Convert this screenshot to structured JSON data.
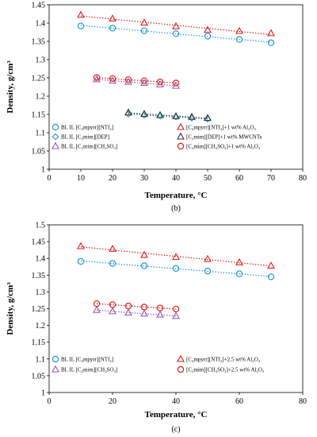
{
  "chart_data": [
    {
      "type": "scatter",
      "panel_label": "(b)",
      "xlabel": "Temperature, °C",
      "ylabel": "Density, g/cm³",
      "xlim": [
        0,
        80
      ],
      "ylim": [
        1,
        1.45
      ],
      "xticks": [
        0,
        10,
        20,
        30,
        40,
        50,
        60,
        70,
        80
      ],
      "yticks": [
        1,
        1.05,
        1.1,
        1.15,
        1.2,
        1.25,
        1.3,
        1.35,
        1.4,
        1.45
      ],
      "xtick_labels": [
        "0",
        "10",
        "20",
        "30",
        "40",
        "50",
        "60",
        "70",
        "80"
      ],
      "ytick_labels": [
        "1",
        "1.05",
        "1.1",
        "1.15",
        "1.2",
        "1.25",
        "1.3",
        "1.35",
        "1.4",
        "1.45"
      ],
      "grid": false,
      "legend_placement": "bottom-inside",
      "series": [
        {
          "name": "BL IL [C₄mpyrr][NTf₂]",
          "marker": "circle",
          "color": "#1f9bd7",
          "x": [
            10,
            20,
            30,
            40,
            50,
            60,
            70
          ],
          "y": [
            1.392,
            1.386,
            1.379,
            1.371,
            1.364,
            1.355,
            1.346
          ]
        },
        {
          "name": "[C₄mpyrr][NTf₂]+1 wt% Al₂O₃",
          "marker": "triangle",
          "color": "#e0201b",
          "x": [
            10,
            20,
            30,
            40,
            50,
            60,
            70
          ],
          "y": [
            1.422,
            1.412,
            1.401,
            1.391,
            1.381,
            1.378,
            1.372
          ]
        },
        {
          "name": "BL IL [C₂mim][DEP]",
          "marker": "diamond",
          "color": "#1f9bd7",
          "x": [
            25,
            30,
            35,
            40,
            45,
            50
          ],
          "y": [
            1.151,
            1.148,
            1.146,
            1.143,
            1.14,
            1.137
          ]
        },
        {
          "name": "[C₂mim][DEP]+1 wt% MWCNTs",
          "marker": "triangle",
          "color": "#333333",
          "x": [
            25,
            30,
            35,
            40,
            45,
            50
          ],
          "y": [
            1.155,
            1.151,
            1.148,
            1.145,
            1.143,
            1.14
          ]
        },
        {
          "name": "BL IL [C₂mim][CH₃SO₃]",
          "marker": "triangle",
          "color": "#9b59b6",
          "x": [
            15,
            20,
            25,
            30,
            35,
            40
          ],
          "y": [
            1.246,
            1.242,
            1.239,
            1.236,
            1.232,
            1.228
          ]
        },
        {
          "name": "[C₂mim][CH₃SO₃]+1 wt% Al₂O₃",
          "marker": "circle",
          "color": "#e0201b",
          "x": [
            15,
            20,
            25,
            30,
            35,
            40
          ],
          "y": [
            1.251,
            1.248,
            1.245,
            1.242,
            1.239,
            1.236
          ]
        }
      ]
    },
    {
      "type": "scatter",
      "panel_label": "(c)",
      "xlabel": "Temperature, °C",
      "ylabel": "Density, g/cm³",
      "xlim": [
        0,
        80
      ],
      "ylim": [
        1,
        1.5
      ],
      "xticks": [
        0,
        20,
        40,
        60,
        80
      ],
      "yticks": [
        1,
        1.05,
        1.1,
        1.15,
        1.2,
        1.25,
        1.3,
        1.35,
        1.4,
        1.45,
        1.5
      ],
      "xtick_labels": [
        "0",
        "20",
        "40",
        "60",
        "80"
      ],
      "ytick_labels": [
        "1",
        "1.05",
        "1.1",
        "1.15",
        "1.2",
        "1.25",
        "1.3",
        "1.35",
        "1.4",
        "1.45",
        "1.5"
      ],
      "grid": false,
      "legend_placement": "bottom-inside",
      "series": [
        {
          "name": "BL IL [C₄mpyrr][NTf₂]",
          "marker": "circle",
          "color": "#1f9bd7",
          "x": [
            10,
            20,
            30,
            40,
            50,
            60,
            70
          ],
          "y": [
            1.391,
            1.385,
            1.378,
            1.37,
            1.362,
            1.354,
            1.345
          ]
        },
        {
          "name": "[C₄mpyrr][NTf₂]+2.5 wt% Al₂O₃",
          "marker": "triangle",
          "color": "#e0201b",
          "x": [
            10,
            20,
            30,
            40,
            50,
            60,
            70
          ],
          "y": [
            1.436,
            1.428,
            1.41,
            1.404,
            1.398,
            1.388,
            1.378
          ]
        },
        {
          "name": "BL IL [C₂mim][CH₃SO₃]",
          "marker": "triangle",
          "color": "#9b59b6",
          "x": [
            15,
            20,
            25,
            30,
            35,
            40
          ],
          "y": [
            1.246,
            1.242,
            1.238,
            1.235,
            1.232,
            1.228
          ]
        },
        {
          "name": "[C₂mim][CH₃SO₃]+2.5 wt% Al₂O₃",
          "marker": "circle",
          "color": "#e0201b",
          "x": [
            15,
            20,
            25,
            30,
            35,
            40
          ],
          "y": [
            1.265,
            1.262,
            1.258,
            1.255,
            1.252,
            1.249
          ]
        }
      ]
    }
  ]
}
